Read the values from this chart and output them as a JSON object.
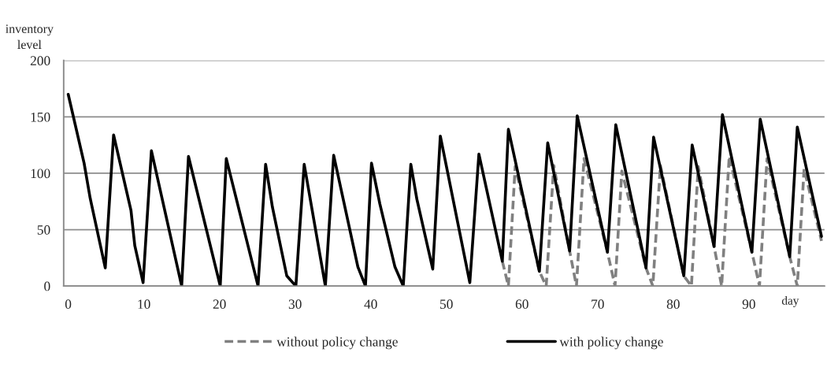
{
  "chart_data": {
    "type": "line",
    "ylabel": "inventory\nlevel",
    "xlabel": "day",
    "xlim": [
      -0.6,
      100
    ],
    "xticks": [
      0,
      10,
      20,
      30,
      40,
      50,
      60,
      70,
      80,
      90
    ],
    "ylim": [
      0,
      200
    ],
    "yticks": [
      0,
      50,
      100,
      150,
      200
    ],
    "grid": "y",
    "legend": "bottom",
    "marker": "none",
    "series": [
      {
        "name": "without policy change",
        "color": "#808080",
        "line_style": "dashed",
        "x": [
          57.4,
          58.2,
          59.1,
          62.3,
          63.2,
          64.2,
          66.3,
          67.2,
          68.2,
          71.3,
          72.3,
          73.2,
          76.4,
          77.3,
          78.3,
          81.4,
          82.4,
          83.3,
          85.4,
          86.4,
          87.4,
          90.4,
          91.4,
          92.4,
          95.4,
          96.4,
          97.3,
          99.6
        ],
        "values": [
          22,
          0,
          106,
          13,
          0,
          107,
          31,
          0,
          113,
          30,
          0,
          102,
          16,
          0,
          107,
          9,
          0,
          106,
          35,
          0,
          115,
          30,
          0,
          113,
          26,
          0,
          104,
          40
        ]
      },
      {
        "name": "with policy change",
        "color": "#000000",
        "line_style": "solid",
        "x": [
          0,
          2.1,
          2.9,
          4.9,
          6.0,
          8.3,
          8.8,
          9.9,
          11.0,
          15.0,
          15.9,
          20.1,
          20.9,
          25.1,
          26.1,
          27,
          28.9,
          30.1,
          31.2,
          34,
          35.1,
          38.3,
          39.3,
          40.1,
          41.2,
          43.2,
          44.3,
          45.3,
          46.1,
          48.2,
          49.2,
          53.1,
          54.3,
          57.4,
          58.2,
          62.3,
          63.4,
          66.3,
          67.3,
          71.3,
          72.4,
          76.4,
          77.4,
          81.4,
          82.5,
          85.4,
          86.5,
          90.4,
          91.5,
          95.4,
          96.4,
          99.6
        ],
        "values": [
          170,
          109,
          78,
          16,
          134,
          67,
          36,
          3,
          120,
          0,
          115,
          0,
          113,
          0,
          108,
          70,
          9,
          0,
          108,
          0,
          116,
          17,
          0,
          109,
          73,
          17,
          0,
          108,
          77,
          15,
          133,
          3,
          117,
          22,
          139,
          13,
          127,
          31,
          151,
          30,
          143,
          16,
          132,
          9,
          125,
          35,
          152,
          30,
          148,
          26,
          141,
          44
        ]
      }
    ]
  }
}
